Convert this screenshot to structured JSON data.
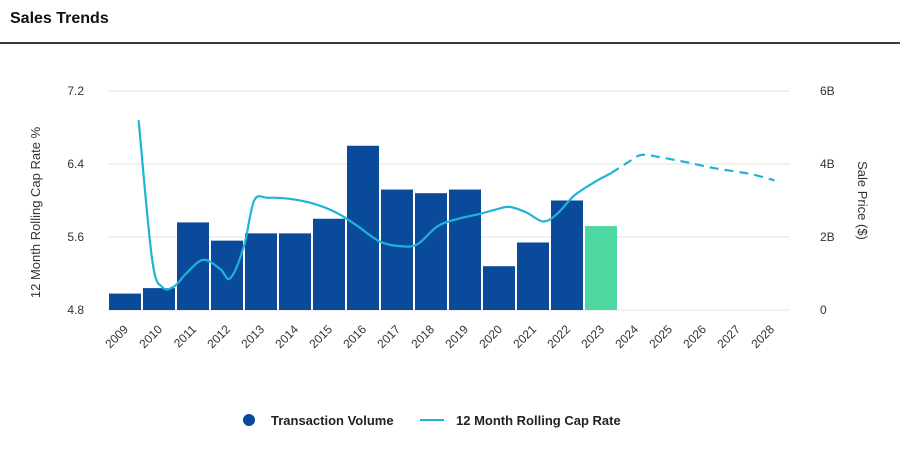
{
  "header": {
    "title": "Sales Trends"
  },
  "colors": {
    "bar": "#0a4a9b",
    "bar_projected": "#4dd8a2",
    "line": "#1fb4d6",
    "grid": "#e3e3e3"
  },
  "legend": {
    "items": [
      {
        "label": "Transaction Volume",
        "marker": "dot"
      },
      {
        "label": "12 Month Rolling Cap Rate",
        "marker": "line"
      }
    ]
  },
  "chart_data": {
    "type": "bar",
    "title": "Sales Trends",
    "categories": [
      "2009",
      "2010",
      "2011",
      "2012",
      "2013",
      "2014",
      "2015",
      "2016",
      "2017",
      "2018",
      "2019",
      "2020",
      "2021",
      "2022",
      "2023",
      "2024",
      "2025",
      "2026",
      "2027",
      "2028"
    ],
    "y_left": {
      "label": "12 Month Rolling Cap Rate %",
      "ticks": [
        "7.2",
        "6.4",
        "5.6",
        "4.8"
      ],
      "range": [
        4.8,
        7.2
      ]
    },
    "y_right": {
      "label": "Sale Price ($)",
      "ticks": [
        "6B",
        "4B",
        "2B",
        "0"
      ],
      "range": [
        0,
        6
      ]
    },
    "grid": true,
    "legend_position": "bottom",
    "series": [
      {
        "name": "Transaction Volume",
        "axis": "right",
        "kind": "bar",
        "unit": "B",
        "values": [
          0.45,
          0.6,
          2.4,
          1.9,
          2.1,
          2.1,
          2.5,
          4.5,
          3.3,
          3.2,
          3.3,
          1.2,
          1.85,
          3.0,
          2.3,
          null,
          null,
          null,
          null,
          null
        ],
        "projected_from": "2023"
      },
      {
        "name": "12 Month Rolling Cap Rate",
        "axis": "left",
        "kind": "line",
        "points": [
          {
            "x": 2009.4,
            "y": 6.88
          },
          {
            "x": 2009.8,
            "y": 5.35
          },
          {
            "x": 2010.1,
            "y": 5.05
          },
          {
            "x": 2010.45,
            "y": 5.06
          },
          {
            "x": 2010.8,
            "y": 5.2
          },
          {
            "x": 2011.3,
            "y": 5.35
          },
          {
            "x": 2011.8,
            "y": 5.25
          },
          {
            "x": 2012.1,
            "y": 5.15
          },
          {
            "x": 2012.5,
            "y": 5.5
          },
          {
            "x": 2012.8,
            "y": 6.0
          },
          {
            "x": 2013.2,
            "y": 6.03
          },
          {
            "x": 2013.8,
            "y": 6.02
          },
          {
            "x": 2014.5,
            "y": 5.97
          },
          {
            "x": 2015.2,
            "y": 5.87
          },
          {
            "x": 2015.8,
            "y": 5.73
          },
          {
            "x": 2016.5,
            "y": 5.55
          },
          {
            "x": 2017.1,
            "y": 5.5
          },
          {
            "x": 2017.6,
            "y": 5.52
          },
          {
            "x": 2018.2,
            "y": 5.72
          },
          {
            "x": 2018.8,
            "y": 5.8
          },
          {
            "x": 2019.4,
            "y": 5.85
          },
          {
            "x": 2019.9,
            "y": 5.9
          },
          {
            "x": 2020.3,
            "y": 5.93
          },
          {
            "x": 2020.8,
            "y": 5.87
          },
          {
            "x": 2021.3,
            "y": 5.77
          },
          {
            "x": 2021.7,
            "y": 5.85
          },
          {
            "x": 2022.2,
            "y": 6.05
          },
          {
            "x": 2022.8,
            "y": 6.2
          },
          {
            "x": 2023.3,
            "y": 6.3
          }
        ],
        "projected_points": [
          {
            "x": 2023.3,
            "y": 6.3
          },
          {
            "x": 2023.8,
            "y": 6.42
          },
          {
            "x": 2024.2,
            "y": 6.5
          },
          {
            "x": 2024.8,
            "y": 6.47
          },
          {
            "x": 2025.5,
            "y": 6.42
          },
          {
            "x": 2026.4,
            "y": 6.35
          },
          {
            "x": 2027.4,
            "y": 6.29
          },
          {
            "x": 2028.1,
            "y": 6.22
          }
        ]
      }
    ]
  }
}
